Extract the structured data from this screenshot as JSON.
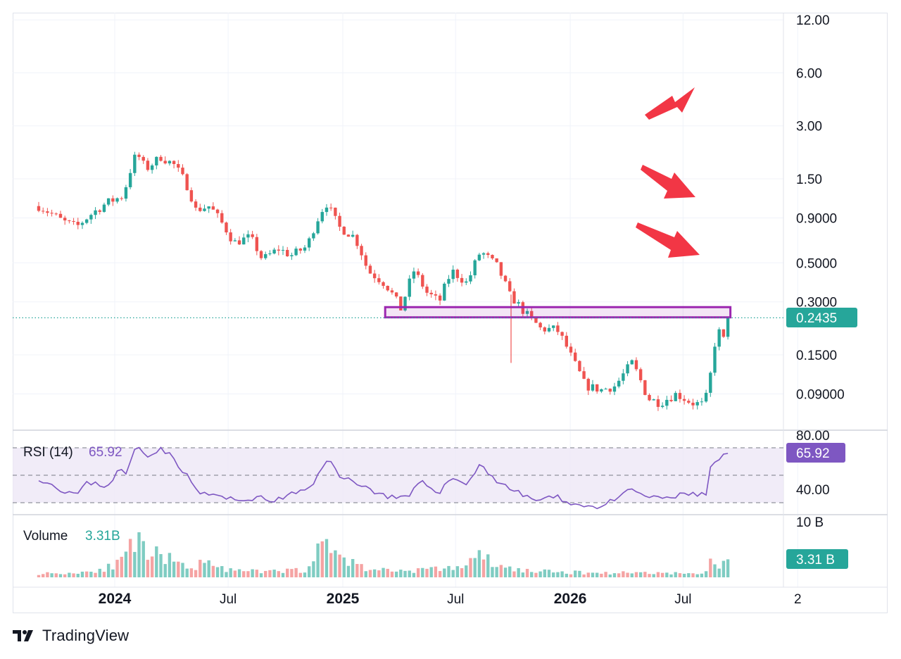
{
  "brand": {
    "name": "TradingView",
    "logo_icon": "tradingview-logo-icon"
  },
  "colors": {
    "up": "#26a69a",
    "down": "#ef5350",
    "rsi_line": "#7e57c2",
    "rsi_band": "#ede7f6",
    "zone": "#9c27b0",
    "arrow": "#f23645",
    "grid": "#f0f3fa",
    "badge_price": "#26a69a",
    "badge_rsi": "#7e57c2",
    "badge_vol": "#26a69a"
  },
  "chart_data": [
    {
      "type": "candlestick",
      "scale": "log",
      "y_ticks": [
        "12.00",
        "6.00",
        "3.00",
        "1.50",
        "0.9000",
        "0.5000",
        "0.3000",
        "0.1500",
        "0.09000",
        "80.00"
      ],
      "x_ticks": [
        {
          "label": "2024",
          "bold": true,
          "date": "2024-01-01"
        },
        {
          "label": "Jul",
          "bold": false,
          "date": "2024-07-01"
        },
        {
          "label": "2025",
          "bold": true,
          "date": "2025-01-01"
        },
        {
          "label": "Jul",
          "bold": false,
          "date": "2025-07-01"
        },
        {
          "label": "2026",
          "bold": true,
          "date": "2026-01-01"
        },
        {
          "label": "Jul",
          "bold": false,
          "date": "2026-07-01"
        },
        {
          "label": "2",
          "bold": false,
          "date": "2027-01-01"
        }
      ],
      "last_price": "0.2435",
      "zone": {
        "low": 0.245,
        "high": 0.28,
        "from": "2025-03-10",
        "to": "2026-09-15"
      },
      "anchors": [
        [
          "2023-09-01",
          1.05
        ],
        [
          "2023-10-10",
          0.86
        ],
        [
          "2023-11-01",
          0.8
        ],
        [
          "2023-11-25",
          0.95
        ],
        [
          "2023-12-20",
          1.1
        ],
        [
          "2024-01-15",
          1.2
        ],
        [
          "2024-02-05",
          2.1
        ],
        [
          "2024-02-20",
          1.7
        ],
        [
          "2024-03-15",
          2.0
        ],
        [
          "2024-04-05",
          1.8
        ],
        [
          "2024-04-25",
          1.4
        ],
        [
          "2024-05-10",
          1.0
        ],
        [
          "2024-06-01",
          1.05
        ],
        [
          "2024-06-20",
          0.85
        ],
        [
          "2024-07-10",
          0.65
        ],
        [
          "2024-08-05",
          0.7
        ],
        [
          "2024-08-25",
          0.52
        ],
        [
          "2024-09-20",
          0.6
        ],
        [
          "2024-10-10",
          0.55
        ],
        [
          "2024-11-05",
          0.62
        ],
        [
          "2024-12-05",
          1.1
        ],
        [
          "2024-12-25",
          0.8
        ],
        [
          "2025-01-20",
          0.7
        ],
        [
          "2025-02-10",
          0.45
        ],
        [
          "2025-03-10",
          0.38
        ],
        [
          "2025-04-05",
          0.27
        ],
        [
          "2025-04-25",
          0.45
        ],
        [
          "2025-05-15",
          0.34
        ],
        [
          "2025-06-05",
          0.3
        ],
        [
          "2025-06-25",
          0.45
        ],
        [
          "2025-07-20",
          0.38
        ],
        [
          "2025-08-10",
          0.58
        ],
        [
          "2025-09-05",
          0.48
        ],
        [
          "2025-09-25",
          0.33
        ],
        [
          "2025-10-20",
          0.26
        ],
        [
          "2025-11-15",
          0.21
        ],
        [
          "2025-12-10",
          0.21
        ],
        [
          "2026-01-05",
          0.14
        ],
        [
          "2026-01-25",
          0.1
        ],
        [
          "2026-02-20",
          0.095
        ],
        [
          "2026-03-15",
          0.1
        ],
        [
          "2026-04-10",
          0.135
        ],
        [
          "2026-05-05",
          0.085
        ],
        [
          "2026-05-25",
          0.08
        ],
        [
          "2026-06-20",
          0.09
        ],
        [
          "2026-07-15",
          0.08
        ],
        [
          "2026-08-05",
          0.078
        ],
        [
          "2026-08-15",
          0.12
        ],
        [
          "2026-08-25",
          0.21
        ],
        [
          "2026-09-05",
          0.18
        ],
        [
          "2026-09-15",
          0.2435
        ]
      ]
    },
    {
      "type": "line",
      "name": "RSI (14)",
      "last_value": "65.92",
      "y_ticks": [
        "40.00"
      ],
      "bands": [
        30,
        50,
        70
      ],
      "anchors": [
        [
          "2023-09-01",
          48
        ],
        [
          "2023-10-10",
          39
        ],
        [
          "2023-11-01",
          36
        ],
        [
          "2023-11-20",
          45
        ],
        [
          "2023-12-20",
          42
        ],
        [
          "2024-01-10",
          55
        ],
        [
          "2024-01-20",
          50
        ],
        [
          "2024-02-05",
          73
        ],
        [
          "2024-02-20",
          64
        ],
        [
          "2024-03-15",
          70
        ],
        [
          "2024-04-05",
          62
        ],
        [
          "2024-04-25",
          50
        ],
        [
          "2024-05-15",
          37
        ],
        [
          "2024-06-15",
          35
        ],
        [
          "2024-07-15",
          31
        ],
        [
          "2024-08-15",
          34
        ],
        [
          "2024-09-10",
          31
        ],
        [
          "2024-10-10",
          36
        ],
        [
          "2024-11-10",
          40
        ],
        [
          "2024-12-10",
          65
        ],
        [
          "2024-12-25",
          48
        ],
        [
          "2025-01-20",
          46
        ],
        [
          "2025-02-20",
          38
        ],
        [
          "2025-03-20",
          34
        ],
        [
          "2025-04-15",
          33
        ],
        [
          "2025-05-05",
          45
        ],
        [
          "2025-06-05",
          38
        ],
        [
          "2025-06-25",
          48
        ],
        [
          "2025-07-20",
          44
        ],
        [
          "2025-08-10",
          58
        ],
        [
          "2025-09-05",
          46
        ],
        [
          "2025-10-05",
          38
        ],
        [
          "2025-11-05",
          32
        ],
        [
          "2025-12-10",
          34
        ],
        [
          "2026-01-15",
          28
        ],
        [
          "2026-02-15",
          27
        ],
        [
          "2026-03-15",
          32
        ],
        [
          "2026-04-10",
          40
        ],
        [
          "2026-05-10",
          33
        ],
        [
          "2026-06-15",
          34
        ],
        [
          "2026-07-15",
          37
        ],
        [
          "2026-08-10",
          35
        ],
        [
          "2026-08-15",
          62
        ],
        [
          "2026-08-25",
          58
        ],
        [
          "2026-09-05",
          64
        ],
        [
          "2026-09-15",
          65.92
        ]
      ]
    },
    {
      "type": "bar",
      "name": "Volume",
      "last_value": "3.31B",
      "y_ticks": [
        "10 B"
      ],
      "badge": "3.31 B",
      "anchors": [
        [
          "2023-09-01",
          0.7
        ],
        [
          "2023-11-01",
          0.8
        ],
        [
          "2023-12-10",
          1.5
        ],
        [
          "2024-01-10",
          2.5
        ],
        [
          "2024-02-05",
          6.8
        ],
        [
          "2024-02-25",
          3.0
        ],
        [
          "2024-03-15",
          4.8
        ],
        [
          "2024-04-05",
          2.5
        ],
        [
          "2024-05-01",
          1.5
        ],
        [
          "2024-06-01",
          3.5
        ],
        [
          "2024-07-01",
          1.2
        ],
        [
          "2024-09-01",
          1.0
        ],
        [
          "2024-11-01",
          1.4
        ],
        [
          "2024-12-05",
          6.3
        ],
        [
          "2025-01-10",
          3.0
        ],
        [
          "2025-02-10",
          1.5
        ],
        [
          "2025-04-01",
          1.2
        ],
        [
          "2025-06-01",
          1.5
        ],
        [
          "2025-07-15",
          2.0
        ],
        [
          "2025-08-10",
          4.0
        ],
        [
          "2025-09-10",
          1.8
        ],
        [
          "2025-11-01",
          1.1
        ],
        [
          "2026-01-01",
          0.9
        ],
        [
          "2026-03-01",
          0.8
        ],
        [
          "2026-05-01",
          0.9
        ],
        [
          "2026-07-01",
          0.7
        ],
        [
          "2026-08-05",
          0.6
        ],
        [
          "2026-08-15",
          3.2
        ],
        [
          "2026-08-25",
          2.2
        ],
        [
          "2026-09-15",
          3.31
        ]
      ]
    }
  ]
}
